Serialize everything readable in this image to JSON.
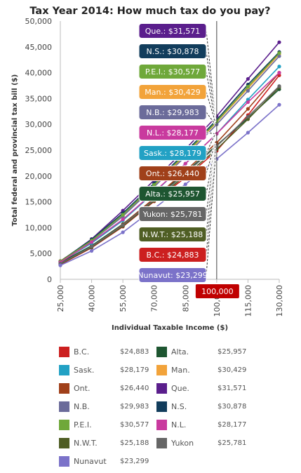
{
  "chart_data": {
    "type": "line",
    "title": "Tax Year 2014: How much tax do you pay?",
    "xlabel": "Individual Taxable Income ($)",
    "ylabel": "Total federal and provincial tax bill ($)",
    "x": [
      25000,
      40000,
      55000,
      70000,
      85000,
      100000,
      115000,
      130000
    ],
    "x_tick_labels": [
      "25,000",
      "40,000",
      "55,000",
      "70,000",
      "85,000",
      "100,000",
      "115,000",
      "130,000"
    ],
    "y_ticks": [
      0,
      5000,
      10000,
      15000,
      20000,
      25000,
      30000,
      35000,
      40000,
      45000,
      50000
    ],
    "y_tick_labels": [
      "0",
      "5,000",
      "10,000",
      "15,000",
      "20,000",
      "25,000",
      "30,000",
      "35,000",
      "40,000",
      "45,000",
      "50,000"
    ],
    "ylim": [
      0,
      50000
    ],
    "xlim": [
      25000,
      130000
    ],
    "grid": false,
    "crosshair_x": 100000,
    "crosshair_label": "100,000",
    "series": [
      {
        "name": "B.C.",
        "color": "#cc1f1f",
        "tooltip": "B.C.: $24,883",
        "legend_value": "$24,883",
        "values": [
          2850,
          6100,
          10200,
          15100,
          19700,
          24883,
          31800,
          39500
        ]
      },
      {
        "name": "Alta.",
        "color": "#1e5631",
        "tooltip": "Alta.: $25,957",
        "legend_value": "$25,957",
        "values": [
          3250,
          6500,
          10700,
          15600,
          20700,
          25957,
          31200,
          36800
        ]
      },
      {
        "name": "Sask.",
        "color": "#22a1c4",
        "tooltip": "Sask.: $28,179",
        "legend_value": "$28,179",
        "values": [
          3350,
          7000,
          11400,
          16800,
          22400,
          28179,
          34800,
          41200
        ]
      },
      {
        "name": "Man.",
        "color": "#f2a33a",
        "tooltip": "Man.: $30,429",
        "legend_value": "$30,429",
        "values": [
          3550,
          7600,
          12300,
          18200,
          24100,
          30429,
          37000,
          43600
        ]
      },
      {
        "name": "Ont.",
        "color": "#a0401a",
        "tooltip": "Ont.: $26,440",
        "legend_value": "$26,440",
        "values": [
          3000,
          6300,
          10600,
          15700,
          21000,
          26440,
          33000,
          40000
        ]
      },
      {
        "name": "Que.",
        "color": "#5a1e8c",
        "tooltip": "Que.: $31,571",
        "legend_value": "$31,571",
        "values": [
          3400,
          7800,
          13300,
          19200,
          25200,
          31571,
          38800,
          45900
        ]
      },
      {
        "name": "N.B.",
        "color": "#6b6b9a",
        "tooltip": "N.B.: $29,983",
        "legend_value": "$29,983",
        "values": [
          3300,
          7400,
          12200,
          17900,
          23800,
          29983,
          36500,
          43200
        ]
      },
      {
        "name": "N.S.",
        "color": "#123d5c",
        "tooltip": "N.S.: $30,878",
        "legend_value": "$30,878",
        "values": [
          3500,
          7700,
          12800,
          18600,
          24600,
          30878,
          37700,
          44000
        ]
      },
      {
        "name": "P.E.I.",
        "color": "#6fa83a",
        "tooltip": "P.E.I.: $30,577",
        "legend_value": "$30,577",
        "values": [
          3450,
          7500,
          12500,
          18300,
          24300,
          30577,
          37300,
          43800
        ]
      },
      {
        "name": "N.L.",
        "color": "#c93a9e",
        "tooltip": "N.L.: $28,177",
        "legend_value": "$28,177",
        "values": [
          3300,
          7200,
          11600,
          16900,
          22400,
          28177,
          34300,
          40000
        ]
      },
      {
        "name": "N.W.T.",
        "color": "#4f5e24",
        "tooltip": "N.W.T.: $25,188",
        "legend_value": "$25,188",
        "values": [
          2950,
          6200,
          10300,
          15200,
          20100,
          25188,
          31000,
          37200
        ]
      },
      {
        "name": "Yukon",
        "color": "#666666",
        "tooltip": "Yukon: $25,781",
        "legend_value": "$25,781",
        "values": [
          3050,
          6350,
          10500,
          15400,
          20500,
          25781,
          31500,
          37400
        ]
      },
      {
        "name": "Nunavut",
        "color": "#7b72c9",
        "tooltip": "Nunavut: $23,299",
        "legend_value": "$23,299",
        "values": [
          2700,
          5500,
          9100,
          13700,
          18400,
          23299,
          28400,
          33800
        ]
      }
    ],
    "tooltip_order": [
      "Que.",
      "N.S.",
      "P.E.I.",
      "Man.",
      "N.B.",
      "N.L.",
      "Sask.",
      "Ont.",
      "Alta.",
      "Yukon",
      "N.W.T.",
      "B.C.",
      "Nunavut"
    ],
    "legend_order": [
      "B.C.",
      "Alta.",
      "Sask.",
      "Man.",
      "Ont.",
      "Que.",
      "N.B.",
      "N.S.",
      "P.E.I.",
      "N.L.",
      "N.W.T.",
      "Yukon",
      "Nunavut"
    ]
  }
}
